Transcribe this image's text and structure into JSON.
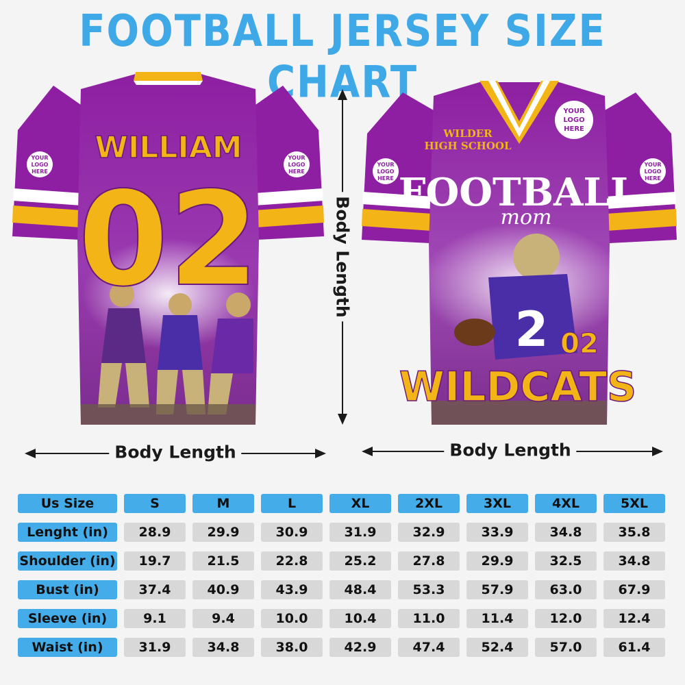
{
  "title": "FOOTBALL JERSEY SIZE CHART",
  "measurements": {
    "body_length_left": "Body Length",
    "body_length_right": "Body Length",
    "body_length_vertical": "Body Length"
  },
  "jersey_back": {
    "name": "WILLIAM",
    "number": "02",
    "sleeve_logo_left": [
      "YOUR",
      "LOGO",
      "HERE"
    ],
    "sleeve_logo_right": [
      "YOUR",
      "LOGO",
      "HERE"
    ],
    "colors": {
      "body": "#8a1f9e",
      "accent": "#f2b416",
      "stripe": "#ffffff"
    }
  },
  "jersey_front": {
    "school_line1": "WILDER",
    "school_line2": "HIGH SCHOOL",
    "logo_text": [
      "YOUR",
      "LOGO",
      "HERE"
    ],
    "sleeve_logo_left": [
      "YOUR",
      "LOGO",
      "HERE"
    ],
    "sleeve_logo_right": [
      "YOUR",
      "LOGO",
      "HERE"
    ],
    "headline": "FOOTBALL",
    "script": "mom",
    "number": "02",
    "team": "WILDCATS",
    "player_number": "2"
  },
  "size_chart": {
    "header_label": "Us Size",
    "sizes": [
      "S",
      "M",
      "L",
      "XL",
      "2XL",
      "3XL",
      "4XL",
      "5XL"
    ],
    "rows": [
      {
        "label": "Lenght (in)",
        "values": [
          "28.9",
          "29.9",
          "30.9",
          "31.9",
          "32.9",
          "33.9",
          "34.8",
          "35.8"
        ]
      },
      {
        "label": "Shoulder (in)",
        "values": [
          "19.7",
          "21.5",
          "22.8",
          "25.2",
          "27.8",
          "29.9",
          "32.5",
          "34.8"
        ]
      },
      {
        "label": "Bust (in)",
        "values": [
          "37.4",
          "40.9",
          "43.9",
          "48.4",
          "53.3",
          "57.9",
          "63.0",
          "67.9"
        ]
      },
      {
        "label": "Sleeve (in)",
        "values": [
          "9.1",
          "9.4",
          "10.0",
          "10.4",
          "11.0",
          "11.4",
          "12.0",
          "12.4"
        ]
      },
      {
        "label": "Waist (in)",
        "values": [
          "31.9",
          "34.8",
          "38.0",
          "42.9",
          "47.4",
          "52.4",
          "57.0",
          "61.4"
        ]
      }
    ],
    "colors": {
      "header": "#45acea",
      "cell": "#d8d8d8",
      "title": "#3fa9e8"
    }
  }
}
